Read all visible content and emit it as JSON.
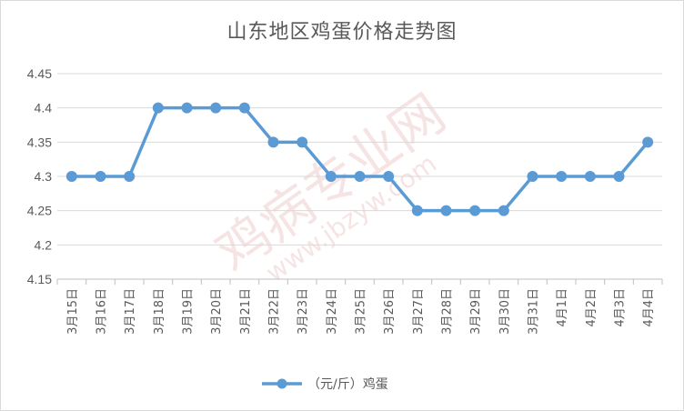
{
  "chart_data": {
    "type": "line",
    "title": "山东地区鸡蛋价格走势图",
    "categories": [
      "3月15日",
      "3月16日",
      "3月17日",
      "3月18日",
      "3月19日",
      "3月20日",
      "3月21日",
      "3月22日",
      "3月23日",
      "3月24日",
      "3月25日",
      "3月26日",
      "3月27日",
      "3月28日",
      "3月29日",
      "3月30日",
      "3月31日",
      "4月1日",
      "4月2日",
      "4月3日",
      "4月4日"
    ],
    "series": [
      {
        "name": "（元/斤）鸡蛋",
        "color": "#5b9bd5",
        "values": [
          4.3,
          4.3,
          4.3,
          4.4,
          4.4,
          4.4,
          4.4,
          4.35,
          4.35,
          4.3,
          4.3,
          4.3,
          4.25,
          4.25,
          4.25,
          4.25,
          4.3,
          4.3,
          4.3,
          4.3,
          4.35
        ]
      }
    ],
    "ylim": [
      4.15,
      4.45
    ],
    "yticks": [
      "4.15",
      "4.2",
      "4.25",
      "4.3",
      "4.35",
      "4.4",
      "4.45"
    ],
    "grid": true,
    "legend": "bottom",
    "xlabel": "",
    "ylabel": ""
  },
  "watermark": {
    "text_main": "鸡病专业网",
    "text_url": "www.jbzyw.com"
  }
}
